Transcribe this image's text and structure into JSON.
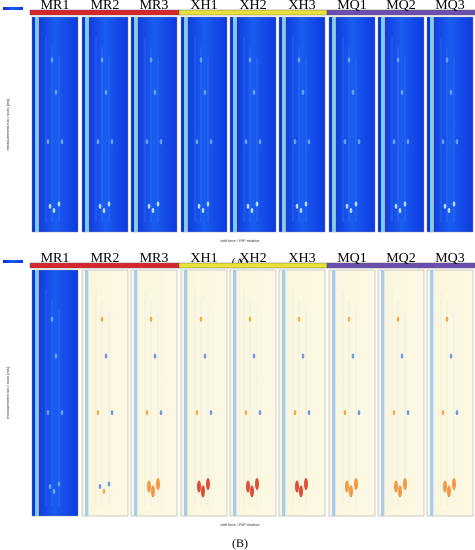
{
  "panels": [
    {
      "label": "(A)",
      "columns": [
        "MR1",
        "MR2",
        "MR3",
        "XH1",
        "XH2",
        "XH3",
        "MQ1",
        "MQ2",
        "MQ3"
      ],
      "x_axis_label": "drift time / RIP relative",
      "y_axis_label": "measurement run / scan [ms]"
    },
    {
      "label": "(B)",
      "columns": [
        "MR1",
        "MR2",
        "MR3",
        "XH1",
        "XH2",
        "XH3",
        "MQ1",
        "MQ2",
        "MQ3"
      ],
      "x_axis_label": "drift time / RIP relative",
      "y_axis_label": "measurement run / scan [ms]"
    }
  ]
}
